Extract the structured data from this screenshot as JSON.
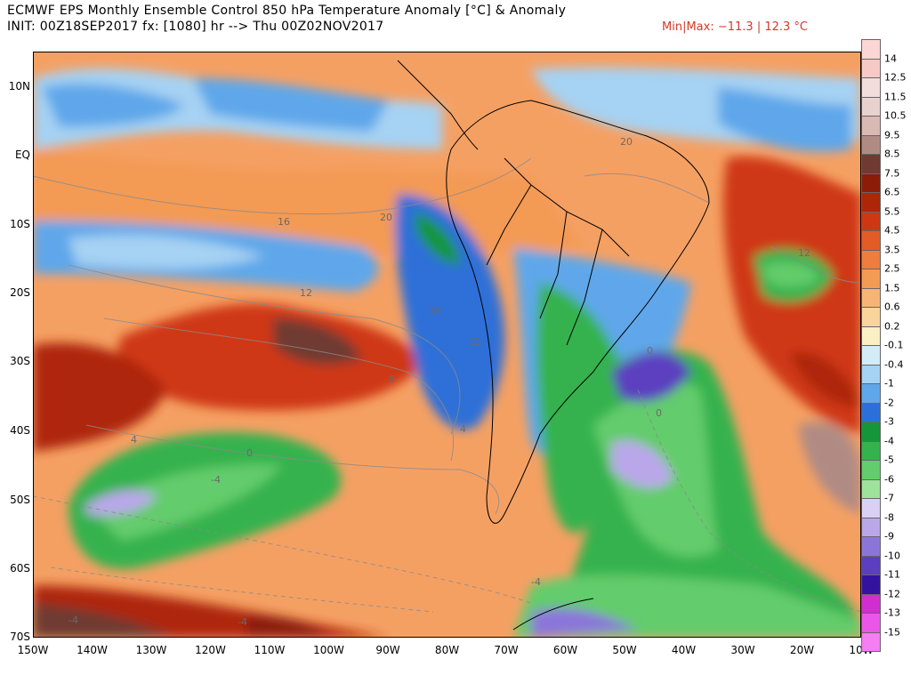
{
  "header": {
    "title": "ECMWF EPS Monthly Ensemble Control 850 hPa Temperature Anomaly [°C] & Anomaly",
    "subtitle": "INIT: 00Z18SEP2017 fx: [1080] hr --> Thu 00Z02NOV2017",
    "minmax": "Min|Max: −11.3 | 12.3 °C"
  },
  "map": {
    "region": "South America and surrounding Pacific / Atlantic oceans",
    "lon_range": [
      -150,
      -10
    ],
    "lat_range": [
      -70,
      15
    ],
    "lat_labels": [
      "10N",
      "EQ",
      "10S",
      "20S",
      "30S",
      "40S",
      "50S",
      "60S",
      "70S"
    ],
    "lon_labels": [
      "150W",
      "140W",
      "130W",
      "120W",
      "110W",
      "100W",
      "90W",
      "80W",
      "70W",
      "60W",
      "50W",
      "40W",
      "30W",
      "20W",
      "10W"
    ],
    "contour_labels": [
      "20",
      "16",
      "20",
      "12",
      "16",
      "12",
      "8",
      "4",
      "0",
      "0",
      "-4",
      "-4",
      "-4",
      "-4",
      "12",
      "0",
      "4"
    ]
  },
  "colorbar": {
    "labels": [
      "14",
      "12.5",
      "11.5",
      "10.5",
      "9.5",
      "8.5",
      "7.5",
      "6.5",
      "5.5",
      "4.5",
      "3.5",
      "2.5",
      "1.5",
      "0.6",
      "0.2",
      "-0.1",
      "-0.4",
      "-1",
      "-2",
      "-3",
      "-4",
      "-5",
      "-6",
      "-7",
      "-8",
      "-9",
      "-10",
      "-11",
      "-12",
      "-13",
      "-15"
    ],
    "colors": [
      "#fbd6d4",
      "#f7c9c6",
      "#f2dcdc",
      "#e8d2d0",
      "#d9b9b4",
      "#b08b84",
      "#6f3a31",
      "#8c1c08",
      "#ae2608",
      "#cf3712",
      "#e35b26",
      "#ee7d3e",
      "#f39a55",
      "#f6b576",
      "#f9d59b",
      "#fbefc6",
      "#d4ecf8",
      "#a6d2f3",
      "#5fa7ea",
      "#2d6fd8",
      "#15963a",
      "#34b24d",
      "#63cc6c",
      "#9ee39b",
      "#d9d0f4",
      "#b9a7ea",
      "#8c75da",
      "#5c3fc0",
      "#3412a0",
      "#d02ed0",
      "#ea57e8",
      "#f47ef2"
    ]
  }
}
